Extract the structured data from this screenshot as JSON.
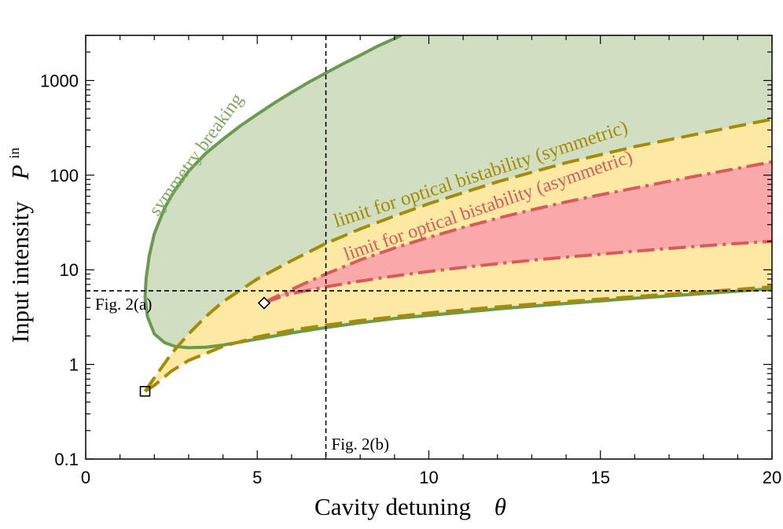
{
  "chart_data": {
    "type": "area",
    "xlabel": "Cavity detuning",
    "xlabel_symbol": "θ",
    "ylabel": "Input intensity",
    "ylabel_symbol": "P",
    "ylabel_superscript": "in",
    "xlim": [
      0,
      20
    ],
    "ylim": [
      0.1,
      3000
    ],
    "yscale": "log",
    "grid": false,
    "legend": "none",
    "xticks": [
      0,
      5,
      10,
      15,
      20
    ],
    "xtick_labels": [
      "0",
      "5",
      "10",
      "15",
      "20"
    ],
    "yticks": [
      0.1,
      1,
      10,
      100,
      1000
    ],
    "ytick_labels": [
      "0.1",
      "1",
      "10",
      "100",
      "1000"
    ],
    "colors": {
      "symmetry_breaking_line": "#6a9a4e",
      "symmetry_breaking_fill": "#d0dfc2",
      "bistability_symmetric_line": "#a88a00",
      "bistability_symmetric_fill": "#fde9a3",
      "bistability_asymmetric_line": "#d85a5a",
      "bistability_asymmetric_fill": "#f9a9a9",
      "reference_line": "#000000"
    },
    "series": [
      {
        "name": "symmetry breaking",
        "style": "solid",
        "upper": {
          "x": [
            1.73,
            1.76,
            1.85,
            2.0,
            2.3,
            2.6,
            3.0,
            3.5,
            4.0,
            4.5,
            5.0,
            5.5,
            6.0,
            6.5,
            7.0,
            7.5,
            8.0,
            8.5,
            9.2
          ],
          "y": [
            5.0,
            8.0,
            14.0,
            24.0,
            45.0,
            70.0,
            110.0,
            170.0,
            240.0,
            330.0,
            440.0,
            580.0,
            750.0,
            960.0,
            1200.0,
            1500.0,
            1850.0,
            2300.0,
            3000.0
          ]
        },
        "lower": {
          "x": [
            1.73,
            1.8,
            2.0,
            2.3,
            2.6,
            3.0,
            3.5,
            4.0,
            5.0,
            6.0,
            7.0,
            8.0,
            9.0,
            10.0,
            12.0,
            14.0,
            16.0,
            18.0,
            20.0
          ],
          "y": [
            5.0,
            3.2,
            2.1,
            1.7,
            1.55,
            1.5,
            1.52,
            1.6,
            1.85,
            2.15,
            2.45,
            2.75,
            3.05,
            3.3,
            3.85,
            4.4,
            5.0,
            5.6,
            6.3
          ]
        }
      },
      {
        "name": "limit for optical bistability (symmetric)",
        "style": "dashed",
        "upper": {
          "x": [
            1.73,
            2.0,
            2.5,
            3.0,
            3.5,
            4.0,
            5.0,
            6.0,
            7.0,
            8.0,
            9.0,
            10.0,
            12.0,
            14.0,
            16.0,
            18.0,
            20.0
          ],
          "y": [
            0.52,
            0.72,
            1.3,
            2.1,
            3.2,
            4.6,
            8.0,
            12.5,
            19.0,
            27.0,
            37.0,
            50.0,
            85.0,
            135.0,
            200.0,
            280.0,
            390.0
          ]
        },
        "lower": {
          "x": [
            1.73,
            2.0,
            2.5,
            3.0,
            4.0,
            5.0,
            6.0,
            7.0,
            8.0,
            10.0,
            12.0,
            14.0,
            16.0,
            18.0,
            20.0
          ],
          "y": [
            0.52,
            0.6,
            0.85,
            1.1,
            1.55,
            1.95,
            2.3,
            2.6,
            2.9,
            3.5,
            4.05,
            4.6,
            5.2,
            5.85,
            6.6
          ]
        }
      },
      {
        "name": "limit  for optical bistability (asymmetric)",
        "style": "dash-dot",
        "upper": {
          "x": [
            5.2,
            5.5,
            6.0,
            6.5,
            7.0,
            8.0,
            9.0,
            10.0,
            11.0,
            12.0,
            13.0,
            14.0,
            15.0,
            16.0,
            17.0,
            18.0,
            19.0,
            20.0
          ],
          "y": [
            4.5,
            5.1,
            6.2,
            7.5,
            9.0,
            12.7,
            17.0,
            22.0,
            28.0,
            35.0,
            43.0,
            52.0,
            62.0,
            73.0,
            86.0,
            101.0,
            118.0,
            138.0
          ]
        },
        "lower": {
          "x": [
            5.2,
            5.5,
            6.0,
            7.0,
            8.0,
            9.0,
            10.0,
            11.0,
            12.0,
            13.0,
            14.0,
            15.0,
            16.0,
            17.0,
            18.0,
            19.0,
            20.0
          ],
          "y": [
            4.5,
            4.9,
            5.6,
            6.6,
            7.6,
            8.6,
            9.6,
            10.6,
            11.6,
            12.6,
            13.6,
            14.6,
            15.7,
            16.8,
            17.9,
            19.0,
            20.0
          ]
        }
      }
    ],
    "reference_lines": {
      "horizontal": {
        "y": 6.0,
        "label": "Fig. 2(a)"
      },
      "vertical": {
        "x": 7.0,
        "label": "Fig. 2(b)"
      }
    },
    "markers": [
      {
        "shape": "square",
        "x": 1.73,
        "y": 0.52
      },
      {
        "shape": "diamond",
        "x": 5.2,
        "y": 4.45
      }
    ],
    "annotations": [
      {
        "text": "symmetry breaking",
        "color": "#7fa95f",
        "x": 2.1,
        "y": 36.0,
        "angle": -54,
        "size": 24
      },
      {
        "text": "limit for optical bistability (symmetric)",
        "color": "#a88a00",
        "x": 7.3,
        "y": 28.0,
        "angle": -18,
        "size": 25
      },
      {
        "text": "limit  for optical bistability (asymmetric)",
        "color": "#d85a5a",
        "x": 7.6,
        "y": 12.5,
        "angle": -19,
        "size": 24
      }
    ]
  }
}
